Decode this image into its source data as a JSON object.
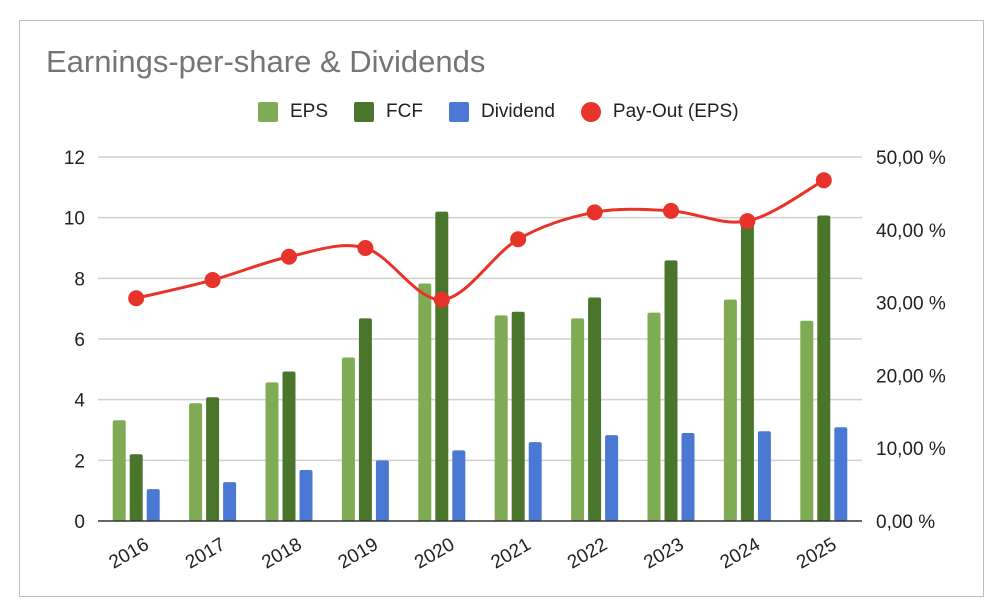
{
  "chart_data": {
    "type": "bar",
    "title": "Earnings-per-share & Dividends",
    "categories": [
      "2016",
      "2017",
      "2018",
      "2019",
      "2020",
      "2021",
      "2022",
      "2023",
      "2024",
      "2025"
    ],
    "series": [
      {
        "name": "EPS",
        "type": "bar",
        "axis": "left",
        "color": "#7fab55",
        "values": [
          3.32,
          3.88,
          4.57,
          5.39,
          7.83,
          6.78,
          6.68,
          6.87,
          7.3,
          6.6
        ]
      },
      {
        "name": "FCF",
        "type": "bar",
        "axis": "left",
        "color": "#4a752c",
        "values": [
          2.2,
          4.08,
          4.93,
          6.68,
          10.2,
          6.9,
          7.37,
          8.59,
          9.9,
          10.07
        ]
      },
      {
        "name": "Dividend",
        "type": "bar",
        "axis": "left",
        "color": "#4a78d2",
        "values": [
          1.05,
          1.28,
          1.68,
          2.0,
          2.33,
          2.6,
          2.83,
          2.9,
          2.96,
          3.09
        ]
      },
      {
        "name": "Pay-Out (EPS)",
        "type": "line",
        "axis": "right",
        "color": "#e8332a",
        "values": [
          30.6,
          33.1,
          36.3,
          37.5,
          30.4,
          38.7,
          42.4,
          42.6,
          41.2,
          46.8
        ]
      }
    ],
    "ylim": [
      0,
      12
    ],
    "yticks": [
      "0",
      "2",
      "4",
      "6",
      "8",
      "10",
      "12"
    ],
    "y2lim": [
      0,
      50
    ],
    "y2ticks": [
      "0,00 %",
      "10,00 %",
      "20,00 %",
      "30,00 %",
      "40,00 %",
      "50,00 %"
    ],
    "grid": true,
    "legend_position": "top"
  }
}
